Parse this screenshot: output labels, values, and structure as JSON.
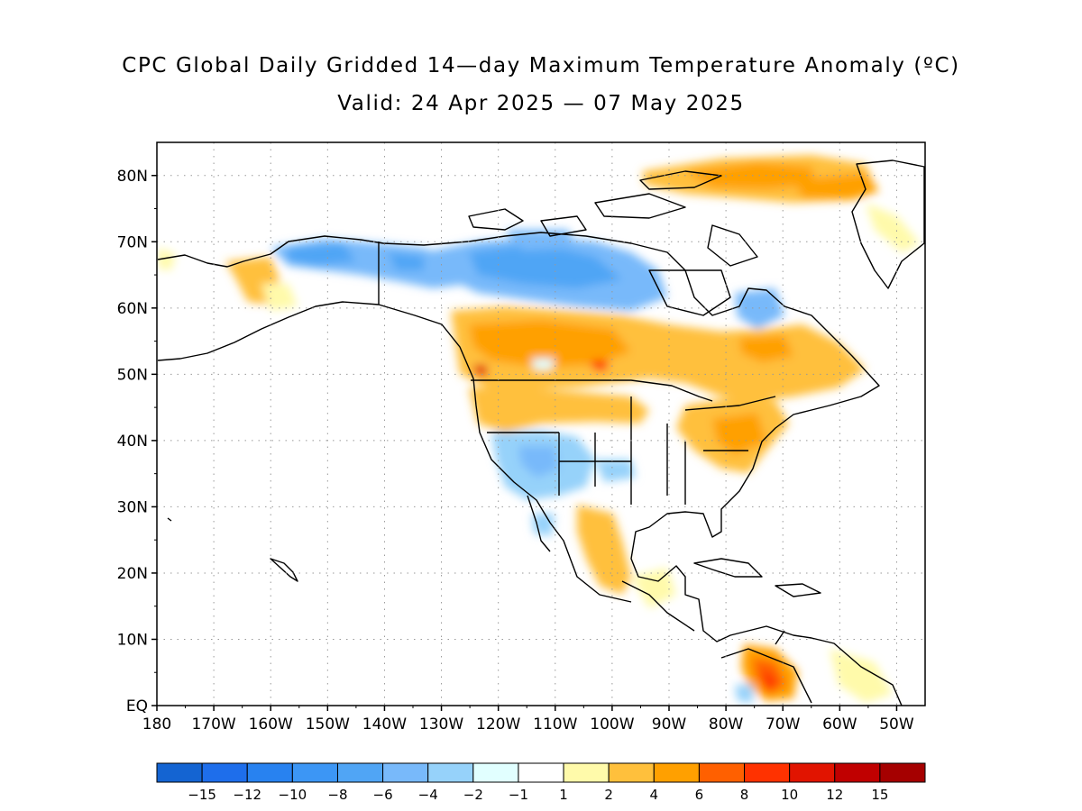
{
  "title": "CPC Global Daily Gridded 14—day Maximum Temperature Anomaly (ºC)",
  "subtitle": "Valid: 24 Apr 2025 — 07 May 2025",
  "map": {
    "lon_range": [
      -180,
      -45
    ],
    "lat_range": [
      0,
      85
    ],
    "lat_ticks": [
      "EQ",
      "10N",
      "20N",
      "30N",
      "40N",
      "50N",
      "60N",
      "70N",
      "80N"
    ],
    "lon_ticks": [
      "180",
      "170W",
      "160W",
      "150W",
      "140W",
      "130W",
      "120W",
      "110W",
      "100W",
      "90W",
      "80W",
      "70W",
      "60W",
      "50W"
    ],
    "grid": "dotted"
  },
  "colorbar": {
    "colors": [
      "#1464d2",
      "#1e6eeb",
      "#2882f0",
      "#3c96f5",
      "#50a5f5",
      "#78b9fa",
      "#96d2fa",
      "#e1ffff",
      "#ffffff",
      "#fffaaa",
      "#ffc03c",
      "#ffa000",
      "#ff6000",
      "#ff3200",
      "#e11400",
      "#c00000",
      "#a50000"
    ],
    "labels": [
      "−15",
      "−12",
      "−10",
      "−8",
      "−6",
      "−4",
      "−2",
      "−1",
      "1",
      "2",
      "4",
      "6",
      "8",
      "10",
      "12",
      "15"
    ]
  }
}
